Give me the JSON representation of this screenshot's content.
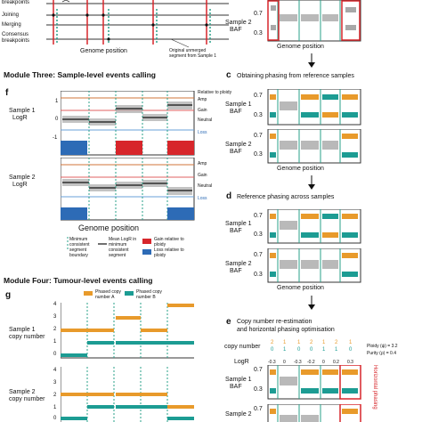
{
  "top_left": {
    "row_labels": [
      "breakpoints",
      "Joining",
      "Merging",
      "Consensus",
      "breakpoints"
    ],
    "genome_position": "Genome position",
    "note_line1": "Original unmerged",
    "note_line2": "segment from Sample 1"
  },
  "module_three": {
    "title": "Module Three: Sample-level events calling",
    "panel_letter": "f",
    "sample1_label": "Sample 1",
    "sample1_axis": "LogR",
    "sample2_label": "Sample 2",
    "sample2_axis": "LogR",
    "yticks": [
      "1",
      "0",
      "-1"
    ],
    "right_labels": {
      "relative": "Relative to ploidy",
      "amp": "Amp",
      "gain": "Gain",
      "neutral": "Neutral",
      "loss": "Loss"
    },
    "genome_position": "Genome position",
    "legend": {
      "minimum": "Minimum consistent segment boundary",
      "mean": "Mean LogR in minimum consistent segment",
      "gain": "Gain relative to ploidy",
      "loss": "Loss relative to ploidy"
    },
    "colors": {
      "gain": "#d7262b",
      "loss": "#2d6bb6",
      "amp_line": "#d0743a",
      "gain_line": "#e06060",
      "loss_line": "#6aa0d8"
    }
  },
  "module_four": {
    "title": "Module Four: Tumour-level events calling",
    "panel_letter": "g",
    "legend": {
      "phased_a": "Phased copy number A",
      "phased_b": "Phased copy number B"
    },
    "sample1_label": "Sample 1",
    "sample1_axis": "copy number",
    "sample2_label": "Sample 2",
    "sample2_axis": "copy number",
    "yticks": [
      "4",
      "3",
      "2",
      "1",
      "0"
    ],
    "colors": {
      "a": "#e89a2b",
      "b": "#1c9c93"
    }
  },
  "right_column": {
    "top": {
      "sample2_label": "Sample 2",
      "baf": "BAF",
      "ticks": [
        "0.7",
        "0.3"
      ],
      "genome_position": "Genome position"
    },
    "c": {
      "letter": "c",
      "title": "Obtaining phasing from reference samples",
      "sample1": "Sample 1",
      "sample2": "Sample 2",
      "baf": "BAF",
      "ticks": [
        "0.7",
        "0.3"
      ],
      "genome_position": "Genome position"
    },
    "d": {
      "letter": "d",
      "title": "Reference phasing across samples",
      "sample1": "Sample 1",
      "sample2": "Sample 2",
      "baf": "BAF",
      "ticks": [
        "0.7",
        "0.3"
      ],
      "genome_position": "Genome position"
    },
    "e": {
      "letter": "e",
      "title_line1": "Copy number re-estimation",
      "title_line2": "and horizontal phasing optimisation",
      "copy_number": "copy number",
      "logr": "LogR",
      "cn_top": [
        "2",
        "1",
        "1",
        "2",
        "1",
        "2",
        "1"
      ],
      "cn_bottom": [
        "0",
        "1",
        "0",
        "0",
        "1",
        "1",
        "0"
      ],
      "logr_values": [
        "-0.3",
        "0",
        "-0.3",
        "-0.2",
        "0",
        "0.2",
        "0.3"
      ],
      "ploidy": "Ploidy (ψ) = 3.2",
      "purity": "Purity (ρ) = 0.4",
      "sample1": "Sample 1",
      "sample2": "Sample 2",
      "baf": "BAF",
      "ticks": [
        "0.7",
        "0.3"
      ],
      "vertical_label": "Horizontal phasing"
    },
    "colors": {
      "orange": "#e89a2b",
      "teal": "#1c9c93",
      "grey": "#a8a8a8",
      "red_box": "#d7262b",
      "vline": "#2aa08a"
    }
  }
}
